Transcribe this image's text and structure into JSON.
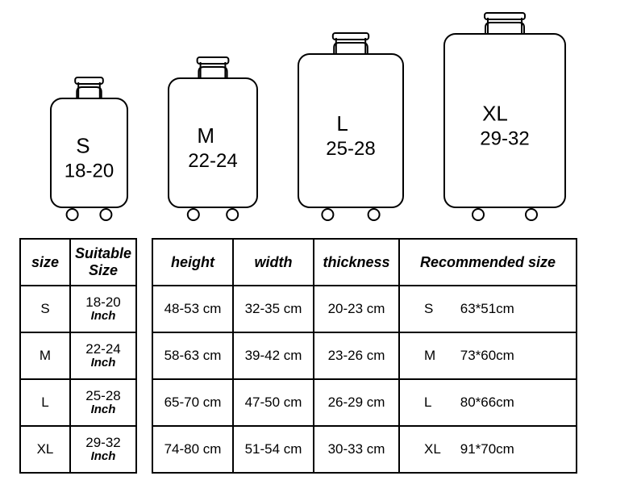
{
  "luggage": [
    {
      "size_label": "S",
      "range": "18-20",
      "body_w": 95,
      "body_h": 135,
      "x": 0
    },
    {
      "size_label": "M",
      "range": "22-24",
      "body_w": 110,
      "body_h": 160,
      "x": 0
    },
    {
      "size_label": "L",
      "range": "25-28",
      "body_w": 130,
      "body_h": 190,
      "x": 0
    },
    {
      "size_label": "XL",
      "range": "29-32",
      "body_w": 150,
      "body_h": 215,
      "x": 0
    }
  ],
  "table1": {
    "headers": {
      "size": "size",
      "suitable": "Suitable Size"
    },
    "unit_label": "Inch",
    "rows": [
      {
        "size": "S",
        "range": "18-20"
      },
      {
        "size": "M",
        "range": "22-24"
      },
      {
        "size": "L",
        "range": "25-28"
      },
      {
        "size": "XL",
        "range": "29-32"
      }
    ]
  },
  "table2": {
    "headers": {
      "height": "height",
      "width": "width",
      "thickness": "thickness",
      "recommended": "Recommended size"
    },
    "rows": [
      {
        "height": "48-53 cm",
        "width": "32-35 cm",
        "thickness": "20-23 cm",
        "rec_size": "S",
        "rec_dim": "63*51cm"
      },
      {
        "height": "58-63 cm",
        "width": "39-42 cm",
        "thickness": "23-26 cm",
        "rec_size": "M",
        "rec_dim": "73*60cm"
      },
      {
        "height": "65-70 cm",
        "width": "47-50 cm",
        "thickness": "26-29 cm",
        "rec_size": "L",
        "rec_dim": "80*66cm"
      },
      {
        "height": "74-80 cm",
        "width": "51-54 cm",
        "thickness": "30-33 cm",
        "rec_size": "XL",
        "rec_dim": "91*70cm"
      }
    ]
  },
  "style": {
    "stroke": "#000000",
    "stroke_width": 2,
    "wheel_radius": 7
  }
}
